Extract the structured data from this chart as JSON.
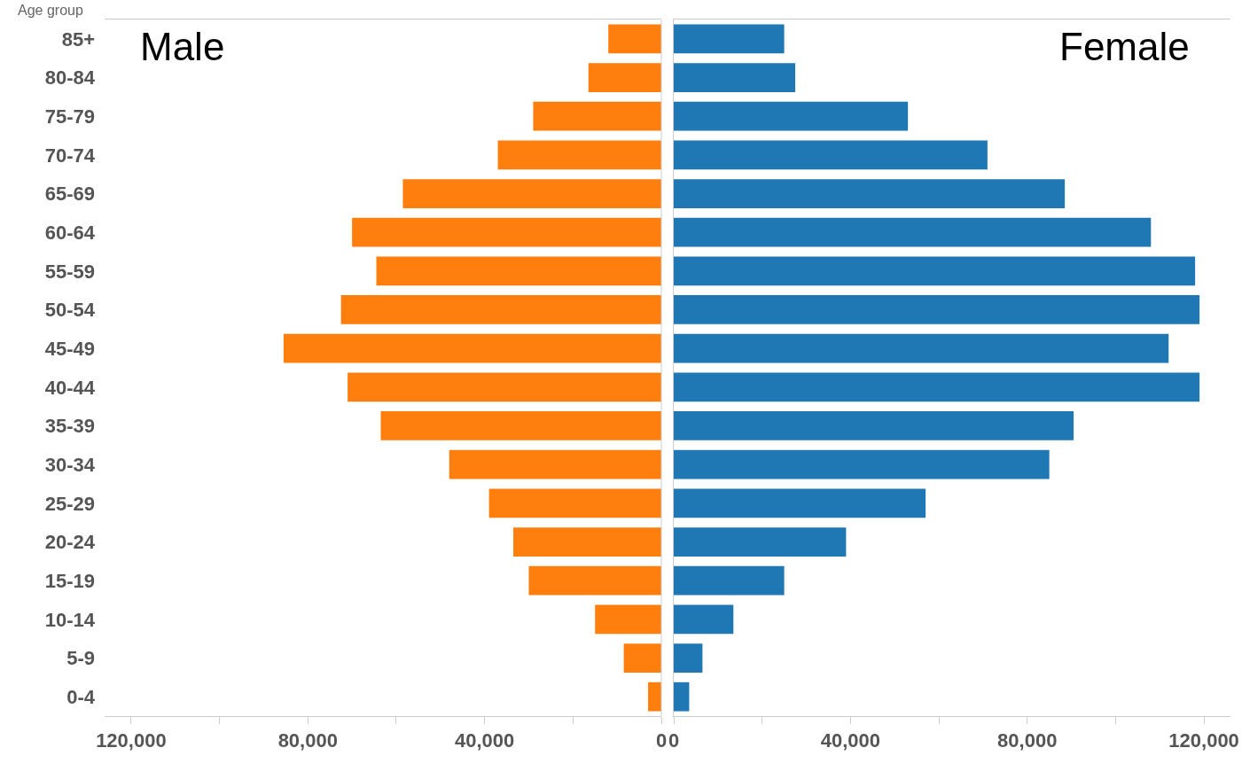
{
  "chart_data": [
    {
      "type": "bar",
      "orientation": "horizontal",
      "ylabel": "Age group",
      "categories": [
        "85+",
        "80-84",
        "75-79",
        "70-74",
        "65-69",
        "60-64",
        "55-59",
        "50-54",
        "45-49",
        "40-44",
        "35-39",
        "30-34",
        "25-29",
        "20-24",
        "15-19",
        "10-14",
        "5-9",
        "0-4"
      ],
      "series": [
        {
          "name": "Male",
          "color": "#ff7f0e",
          "values": [
            12000,
            16500,
            29000,
            37000,
            58500,
            70000,
            64500,
            72500,
            85500,
            71000,
            63500,
            48000,
            39000,
            33500,
            30000,
            15000,
            8500,
            3000
          ]
        }
      ],
      "xlim": [
        126000,
        0
      ],
      "xticks": [
        {
          "value": 120000,
          "label": "120,000"
        },
        {
          "value": 100000,
          "label": null
        },
        {
          "value": 80000,
          "label": "80,000"
        },
        {
          "value": 60000,
          "label": null
        },
        {
          "value": 40000,
          "label": "40,000"
        },
        {
          "value": 20000,
          "label": null
        },
        0
      ],
      "grid": false,
      "legend": false
    },
    {
      "type": "bar",
      "orientation": "horizontal",
      "tick_labels": "x",
      "series": [
        {
          "name": "Female",
          "color": "#1f77b4",
          "values": [
            25000,
            27500,
            53000,
            71000,
            88500,
            108000,
            118000,
            119000,
            112000,
            119000,
            90500,
            85000,
            57000,
            39000,
            25000,
            13500,
            6500,
            3500
          ]
        }
      ],
      "xlim": [
        0,
        126000
      ],
      "xticks": [
        0,
        {
          "value": 20000,
          "label": null
        },
        {
          "value": 40000,
          "label": "40,000"
        },
        {
          "value": 60000,
          "label": null
        },
        {
          "value": 80000,
          "label": "80,000"
        },
        {
          "value": 100000,
          "label": null
        },
        {
          "value": 120000,
          "label": "120,000"
        }
      ],
      "grid": false,
      "legend": false
    }
  ]
}
